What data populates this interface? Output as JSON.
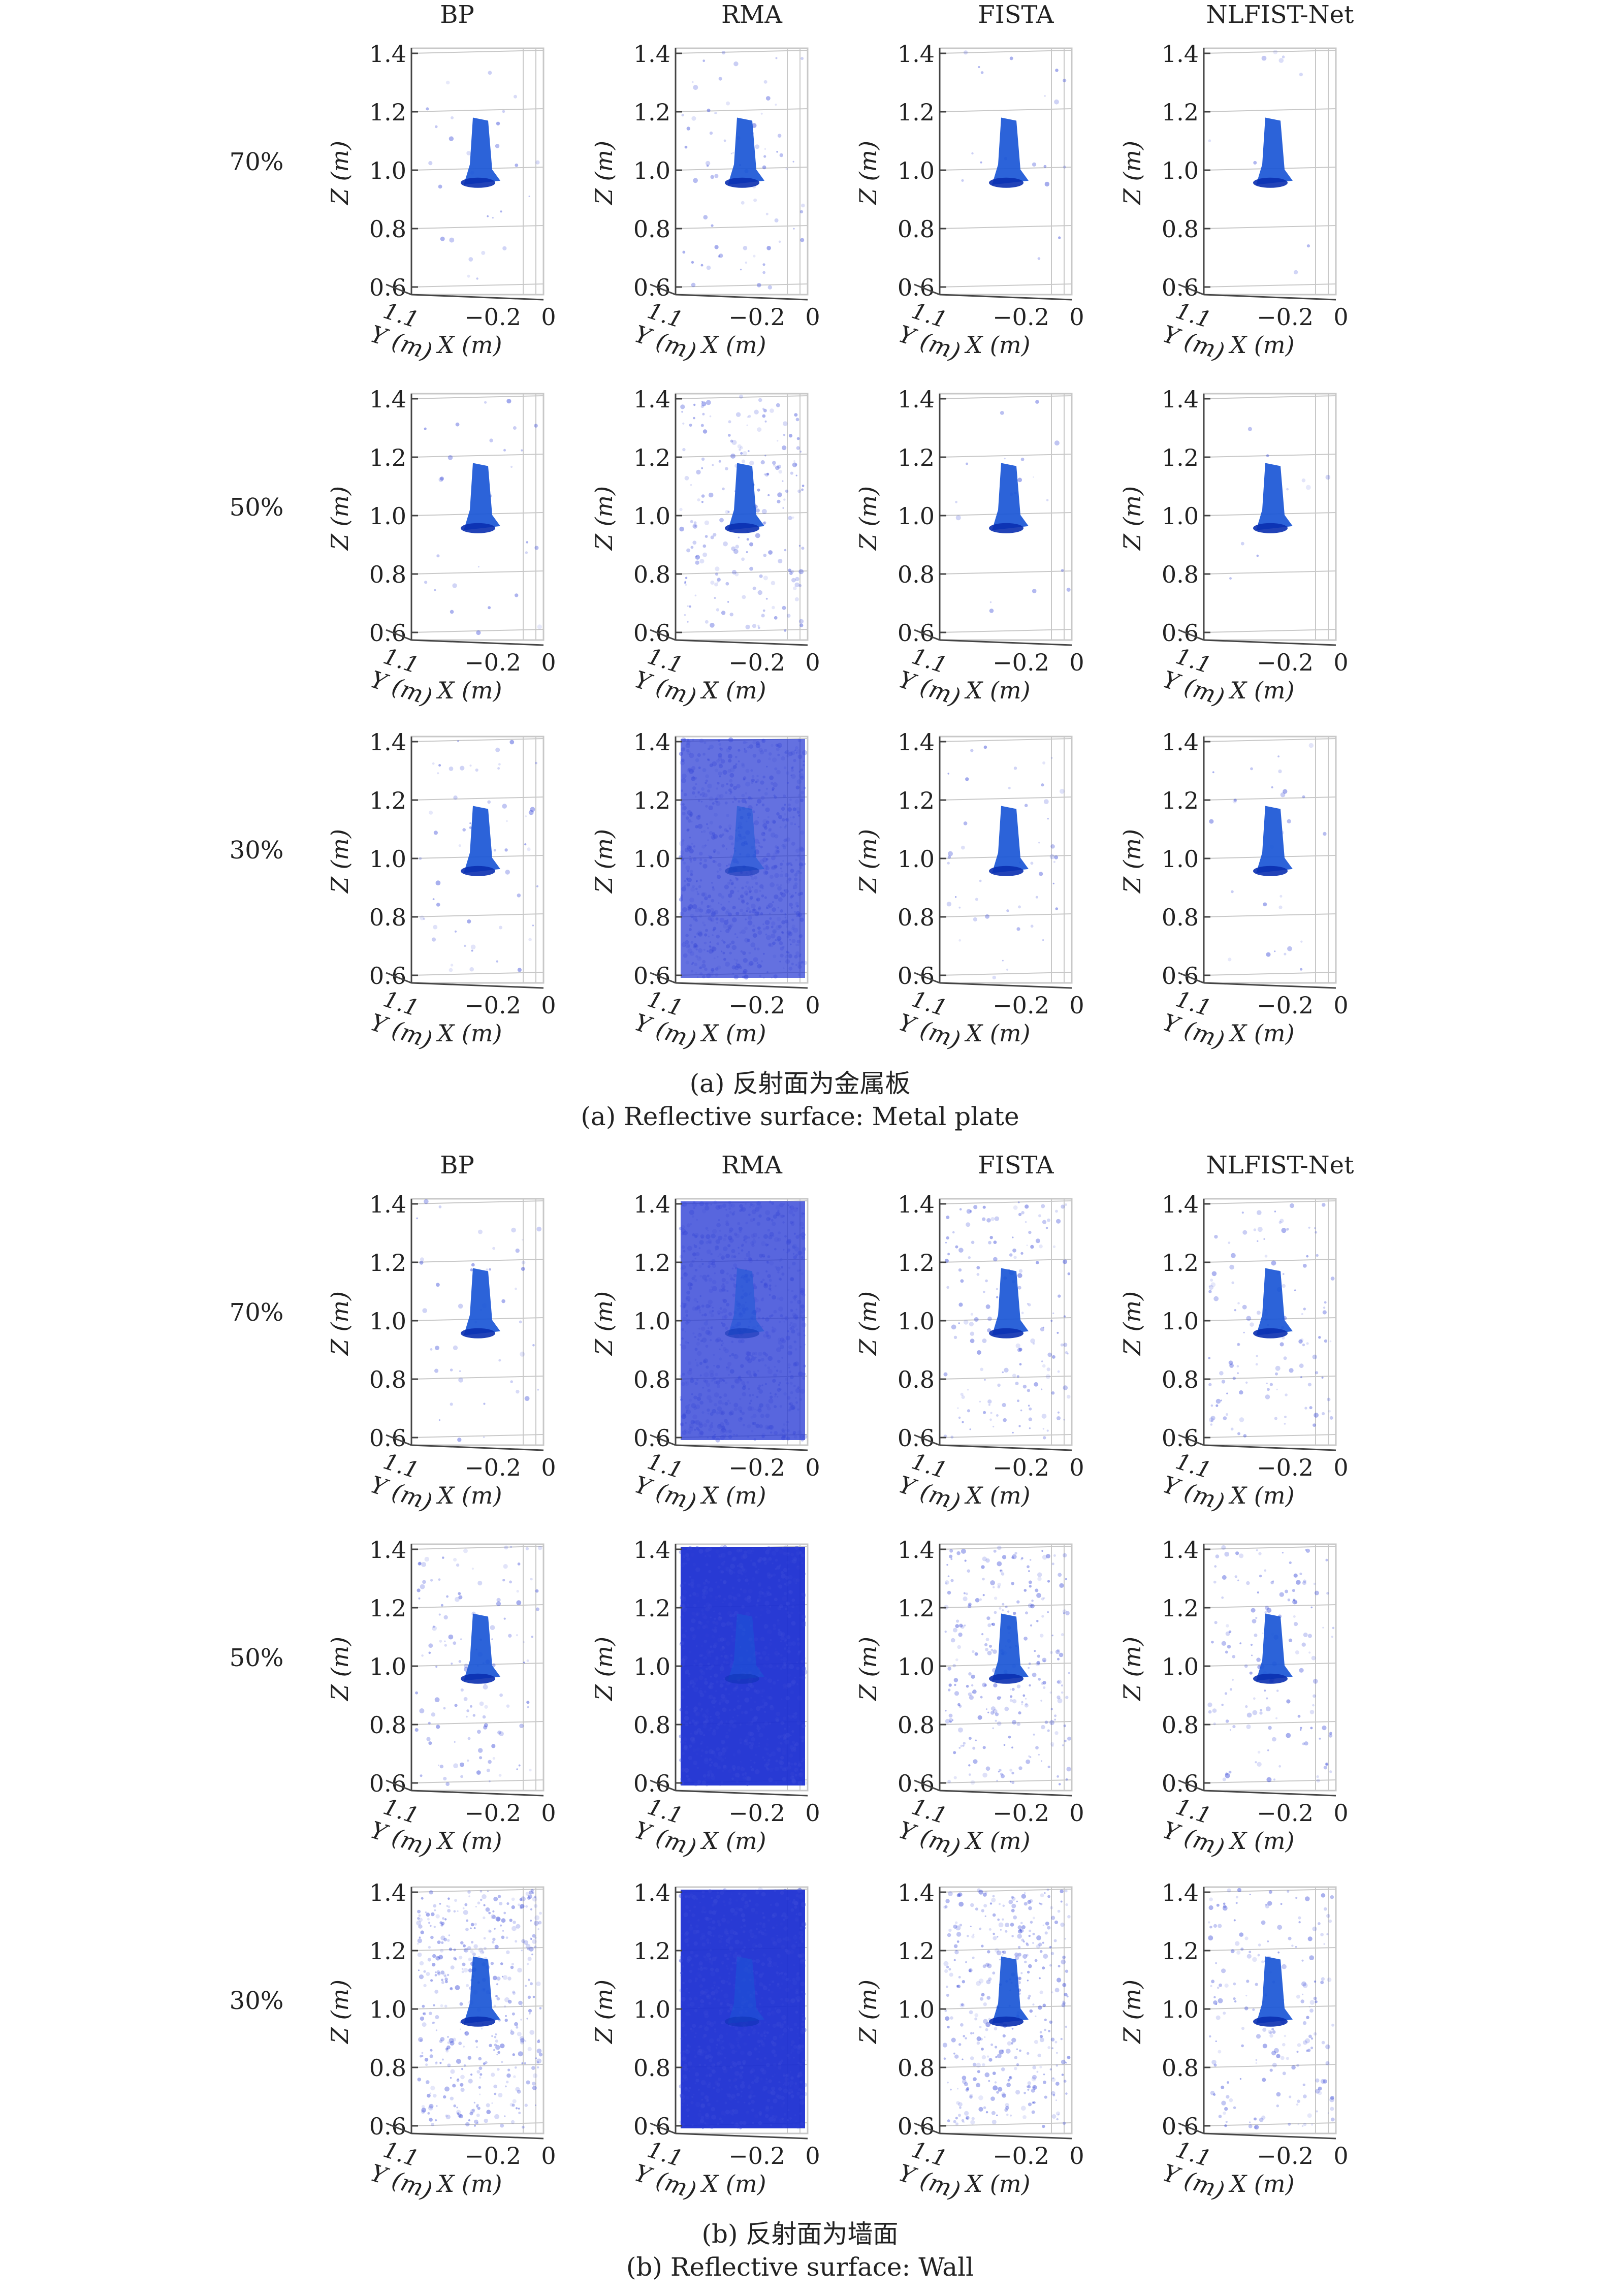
{
  "figure": {
    "methods": [
      "BP",
      "RMA",
      "FISTA",
      "NLFIST-Net"
    ],
    "rate_labels": [
      "70%",
      "50%",
      "30%"
    ],
    "axes": {
      "z_label": "Z (m)",
      "z_ticks": [
        "1.4",
        "1.2",
        "1.0",
        "0.8",
        "0.6"
      ],
      "y_label": "Y (m)",
      "y_tick": "1.1",
      "x_label": "X (m)",
      "x_ticks": [
        "−0.2",
        "0"
      ]
    },
    "panels": [
      {
        "caption_cn": "(a) 反射面为金属板",
        "caption_en": "(a) Reflective surface: Metal plate",
        "noise_levels": [
          [
            0.03,
            0.08,
            0.02,
            0.01
          ],
          [
            0.03,
            0.22,
            0.02,
            0.01
          ],
          [
            0.06,
            0.9,
            0.05,
            0.03
          ]
        ]
      },
      {
        "caption_cn": "(b) 反射面为墙面",
        "caption_en": "(b) Reflective surface: Wall",
        "noise_levels": [
          [
            0.05,
            0.92,
            0.18,
            0.14
          ],
          [
            0.14,
            1.0,
            0.3,
            0.16
          ],
          [
            0.48,
            1.0,
            0.42,
            0.22
          ]
        ]
      }
    ],
    "colors": {
      "target": "#1a56d6",
      "target_dark": "#0a2fb0",
      "noise": "#3a4ad8",
      "solid_background": "#1c2fd2",
      "grid": "#c8c8c8",
      "axis": "#444444"
    }
  }
}
